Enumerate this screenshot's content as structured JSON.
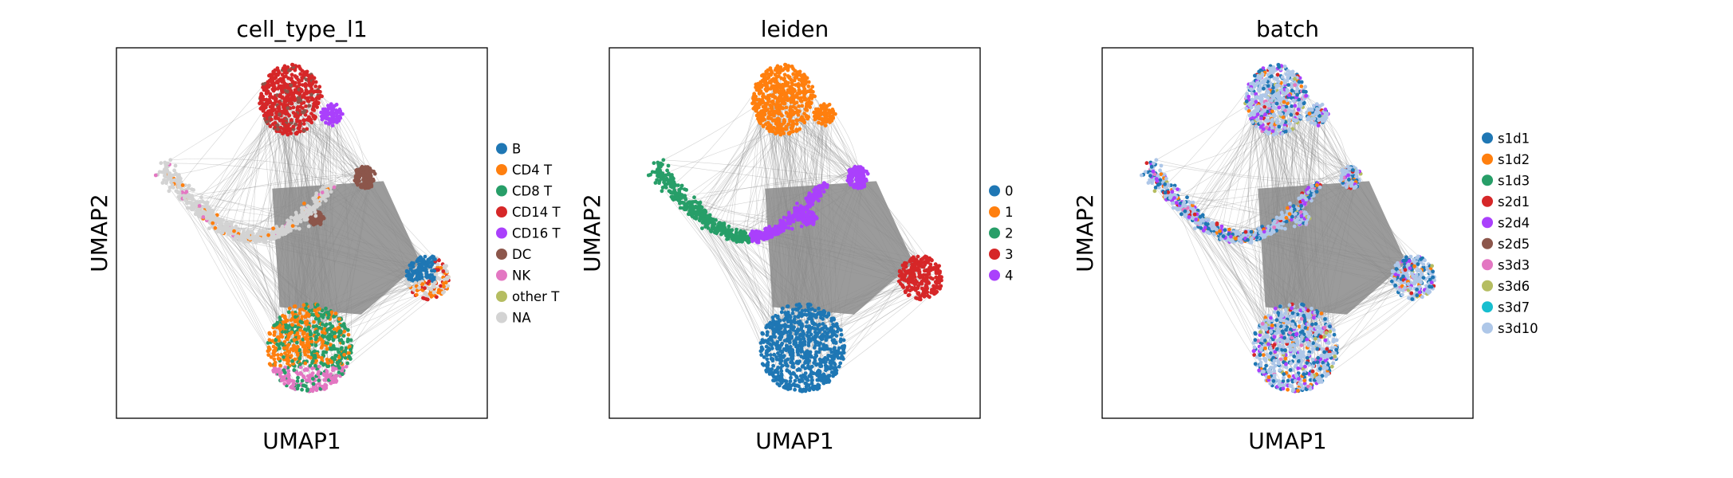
{
  "chart_data": [
    {
      "type": "scatter",
      "title": "cell_type_l1",
      "xlabel": "UMAP1",
      "ylabel": "UMAP2",
      "grid": false,
      "legend_position": "right",
      "legend": [
        {
          "label": "B",
          "color": "#1f77b4"
        },
        {
          "label": "CD4 T",
          "color": "#ff7f0e"
        },
        {
          "label": "CD8 T",
          "color": "#279e68"
        },
        {
          "label": "CD14 T",
          "color": "#d62728"
        },
        {
          "label": "CD16 T",
          "color": "#aa40fc"
        },
        {
          "label": "DC",
          "color": "#8c564b"
        },
        {
          "label": "NK",
          "color": "#e377c2"
        },
        {
          "label": "other T",
          "color": "#b5bd61"
        },
        {
          "label": "NA",
          "color": "#d3d3d3"
        }
      ]
    },
    {
      "type": "scatter",
      "title": "leiden",
      "xlabel": "UMAP1",
      "ylabel": "UMAP2",
      "grid": false,
      "legend_position": "right",
      "legend": [
        {
          "label": "0",
          "color": "#1f77b4"
        },
        {
          "label": "1",
          "color": "#ff7f0e"
        },
        {
          "label": "2",
          "color": "#279e68"
        },
        {
          "label": "3",
          "color": "#d62728"
        },
        {
          "label": "4",
          "color": "#aa40fc"
        }
      ]
    },
    {
      "type": "scatter",
      "title": "batch",
      "xlabel": "UMAP1",
      "ylabel": "UMAP2",
      "grid": false,
      "legend_position": "right",
      "legend": [
        {
          "label": "s1d1",
          "color": "#1f77b4"
        },
        {
          "label": "s1d2",
          "color": "#ff7f0e"
        },
        {
          "label": "s1d3",
          "color": "#279e68"
        },
        {
          "label": "s2d1",
          "color": "#d62728"
        },
        {
          "label": "s2d4",
          "color": "#aa40fc"
        },
        {
          "label": "s2d5",
          "color": "#8c564b"
        },
        {
          "label": "s3d3",
          "color": "#e377c2"
        },
        {
          "label": "s3d6",
          "color": "#b5bd61"
        },
        {
          "label": "s3d7",
          "color": "#17becf"
        },
        {
          "label": "s3d10",
          "color": "#aec7e8"
        }
      ]
    }
  ],
  "edge_color": "#808080"
}
